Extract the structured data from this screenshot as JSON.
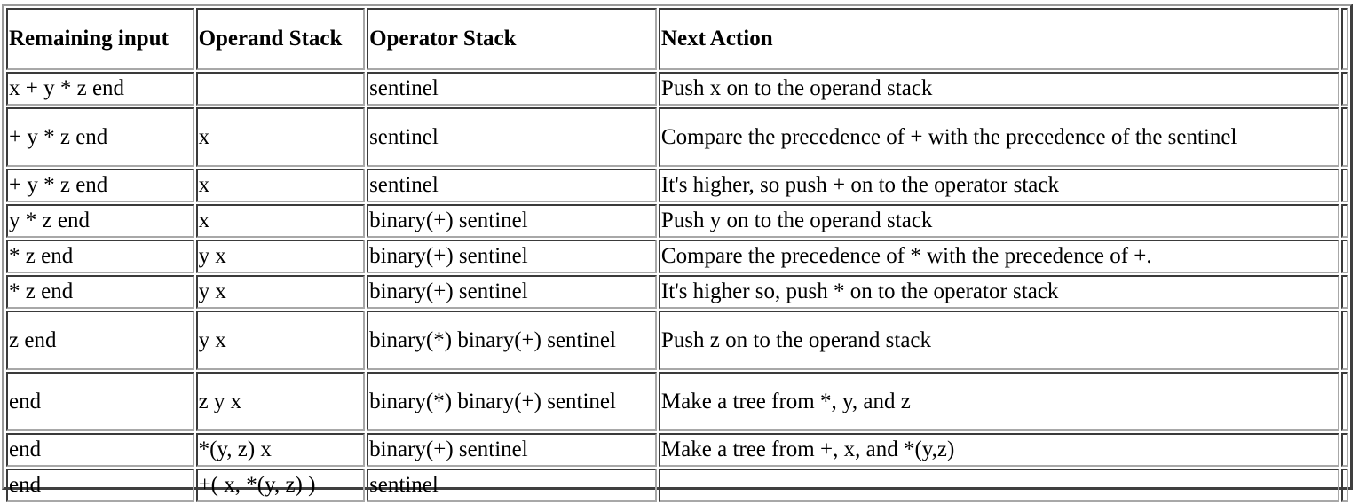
{
  "table": {
    "headers": [
      "Remaining input",
      "Operand Stack",
      "Operator Stack",
      "Next Action"
    ],
    "rows": [
      [
        "x + y * z end",
        "",
        "sentinel",
        "Push x on to the operand stack"
      ],
      [
        "+ y * z end",
        "x",
        "sentinel",
        "Compare the precedence of + with the precedence of the sentinel"
      ],
      [
        "+ y * z end",
        "x",
        "sentinel",
        "It's higher, so push + on to the operator stack"
      ],
      [
        "y * z end",
        "x",
        "binary(+) sentinel",
        "Push y on to the operand stack"
      ],
      [
        "* z end",
        "y x",
        "binary(+) sentinel",
        "Compare the precedence of * with the precedence of +."
      ],
      [
        "* z end",
        "y x",
        "binary(+) sentinel",
        "It's higher so, push * on to the operator stack"
      ],
      [
        "z end",
        "y x",
        "binary(*) binary(+) sentinel",
        "Push z on to the operand stack"
      ],
      [
        "end",
        "z y x",
        "binary(*) binary(+) sentinel",
        "Make a tree from *, y, and z"
      ],
      [
        "end",
        "*(y, z) x",
        "binary(+) sentinel",
        "Make a tree from +, x, and *(y,z)"
      ],
      [
        "end",
        "+( x, *(y, z) )",
        "sentinel",
        ""
      ]
    ]
  }
}
